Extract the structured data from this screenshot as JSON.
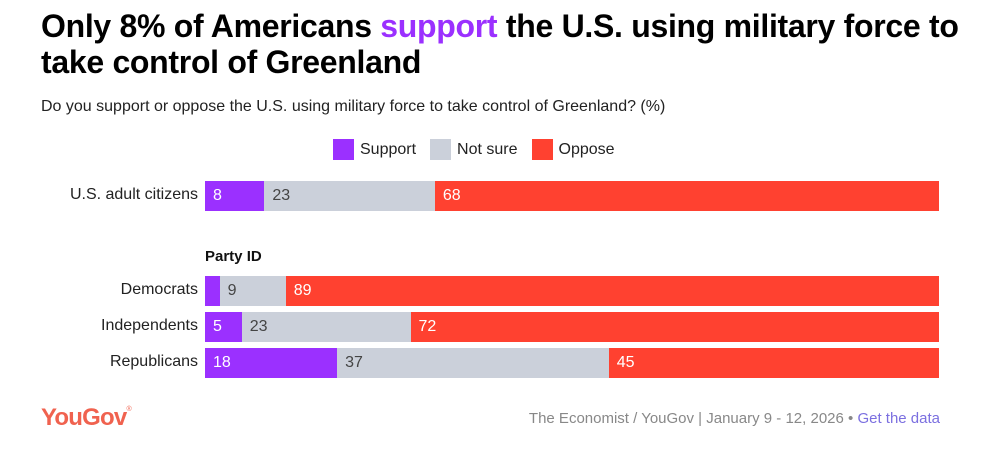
{
  "title": {
    "before": "Only 8% of Americans ",
    "highlight": "support",
    "after": " the U.S. using military force to take control of Greenland"
  },
  "colors": {
    "support": "#9b30ff",
    "not_sure": "#cbd0da",
    "oppose": "#ff4130",
    "logo": "#f0624f",
    "link": "#7b6fe0"
  },
  "chart_data": {
    "type": "bar",
    "orientation": "horizontal",
    "stacked": true,
    "title": "Only 8% of Americans support the U.S. using military force to take control of Greenland",
    "subtitle": "Do you support or oppose the U.S. using military force to take control of Greenland? (%)",
    "legend": {
      "placement": "top-center",
      "entries": [
        "Support",
        "Not sure",
        "Oppose"
      ]
    },
    "categories": [
      "U.S. adult citizens",
      "Democrats",
      "Independents",
      "Republicans"
    ],
    "groups": [
      {
        "label": "",
        "categories": [
          "U.S. adult citizens"
        ]
      },
      {
        "label": "Party ID",
        "categories": [
          "Democrats",
          "Independents",
          "Republicans"
        ]
      }
    ],
    "series": [
      {
        "name": "Support",
        "values": [
          8,
          2,
          5,
          18
        ],
        "labels": [
          "8",
          "",
          "5",
          "18"
        ]
      },
      {
        "name": "Not sure",
        "values": [
          23,
          9,
          23,
          37
        ],
        "labels": [
          "23",
          "9",
          "23",
          "37"
        ]
      },
      {
        "name": "Oppose",
        "values": [
          68,
          89,
          72,
          45
        ],
        "labels": [
          "68",
          "89",
          "72",
          "45"
        ]
      }
    ],
    "xlim": [
      0,
      100
    ],
    "grid": false
  },
  "footer": {
    "logo": "YouGov",
    "logo_mark": "®",
    "source": "The Economist / YouGov | January 9 - 12, 2026 • ",
    "link": "Get the data"
  }
}
